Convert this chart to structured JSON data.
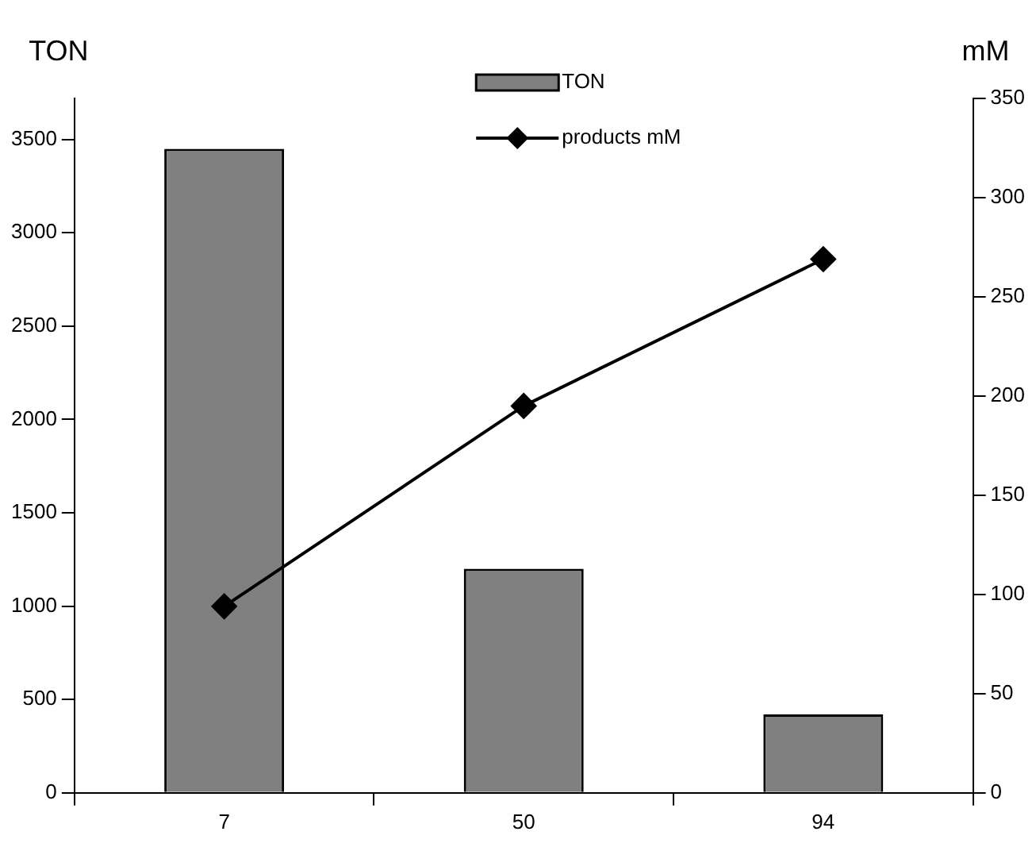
{
  "chart_data": {
    "type": "bar",
    "ylabel": "TON",
    "y2label": "mM",
    "categories": [
      "7",
      "50",
      "94"
    ],
    "series": [
      {
        "name": "TON",
        "color": "#808080",
        "values": [
          3450,
          1200,
          420
        ]
      },
      {
        "name": "products mM",
        "type": "line",
        "axis": "y2",
        "color": "#000000",
        "marker": "diamond",
        "line_style": "solid",
        "values": [
          94,
          195,
          269
        ]
      }
    ],
    "ylim": [
      0,
      3720
    ],
    "yticks": [
      0,
      500,
      1000,
      1500,
      2000,
      2500,
      3000,
      3500
    ],
    "y2lim": [
      0,
      350
    ],
    "y2ticks": [
      0,
      50,
      100,
      150,
      200,
      250,
      300,
      350
    ],
    "grid": false,
    "legend": "top"
  }
}
